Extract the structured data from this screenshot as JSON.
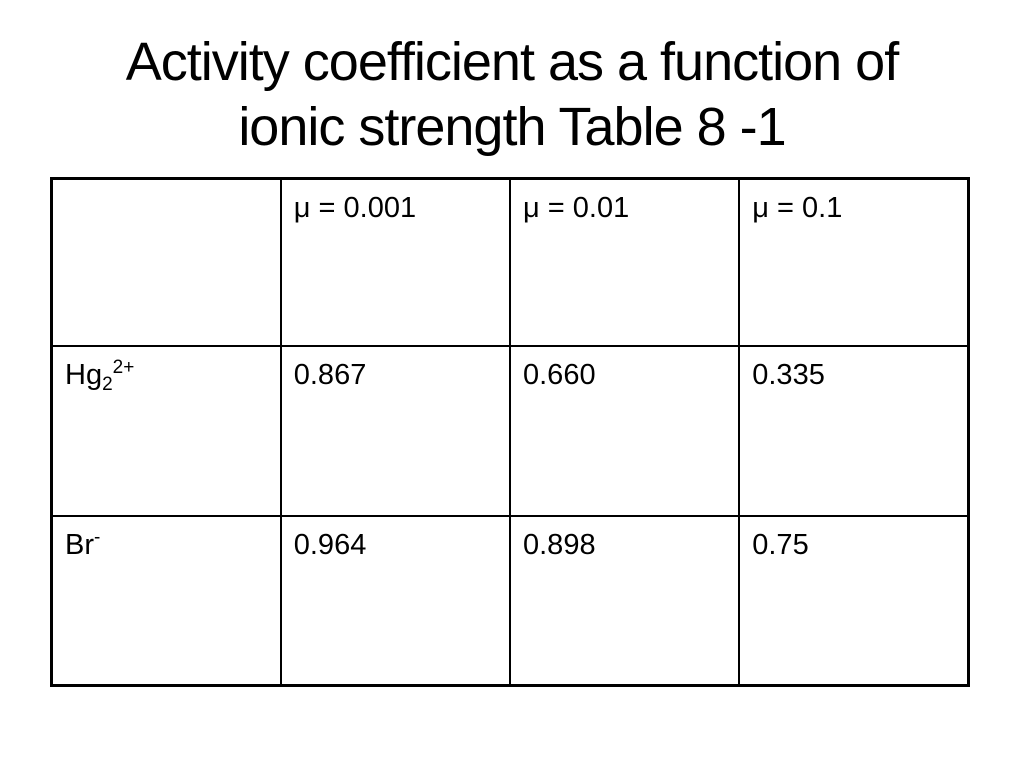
{
  "slide": {
    "title_lines": [
      "Activity coefficient as a function of",
      "ionic strength Table 8 -1"
    ],
    "title_full": "Activity coefficient as a function of ionic strength Table 8 -1"
  },
  "table": {
    "header": [
      "",
      "μ = 0.001",
      "μ = 0.01",
      "μ = 0.1"
    ],
    "rows": [
      {
        "ion_base": "Hg",
        "ion_sub": "2",
        "ion_sup": "2+",
        "values": [
          "0.867",
          "0.660",
          "0.335"
        ]
      },
      {
        "ion_base": "Br",
        "ion_sub": "",
        "ion_sup": "-",
        "values": [
          "0.964",
          "0.898",
          "0.75"
        ]
      }
    ]
  },
  "colors": {
    "background": "#ffffff",
    "text": "#000000",
    "table_border": "#000000"
  }
}
